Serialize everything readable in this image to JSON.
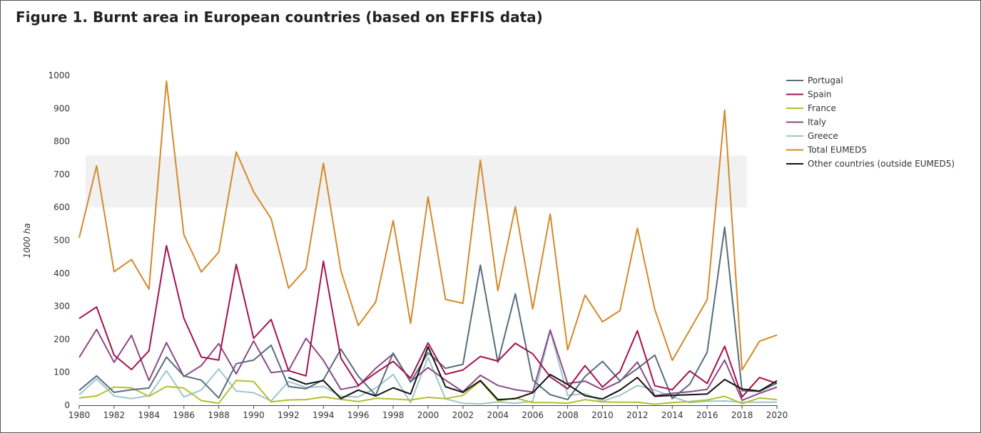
{
  "title": "Figure 1. Burnt area in European countries (based on EFFIS data)",
  "chart_data": {
    "type": "line",
    "title": "Figure 1. Burnt area in European countries (based on EFFIS data)",
    "xlabel": "",
    "ylabel": "1000 ha",
    "ylim": [
      0,
      1000
    ],
    "yticks": [
      "0",
      "100",
      "200",
      "300",
      "400",
      "500",
      "600",
      "700",
      "800",
      "900",
      "1000"
    ],
    "xticks": [
      "1980",
      "1982",
      "1984",
      "1986",
      "1988",
      "1990",
      "1992",
      "1994",
      "1996",
      "1998",
      "2000",
      "2002",
      "2004",
      "2006",
      "2008",
      "2010",
      "2012",
      "2014",
      "2016",
      "2018",
      "2020"
    ],
    "xlim": [
      1980,
      2020
    ],
    "band": {
      "from": 600,
      "to": 757
    },
    "x": [
      1980,
      1981,
      1982,
      1983,
      1984,
      1985,
      1986,
      1987,
      1988,
      1989,
      1990,
      1991,
      1992,
      1993,
      1994,
      1995,
      1996,
      1997,
      1998,
      1999,
      2000,
      2001,
      2002,
      2003,
      2004,
      2005,
      2006,
      2007,
      2008,
      2009,
      2010,
      2011,
      2012,
      2013,
      2014,
      2015,
      2016,
      2017,
      2018,
      2019,
      2020
    ],
    "legend_position": "top-right",
    "series": [
      {
        "name": "Portugal",
        "color": "#566d7c",
        "values": [
          45,
          89,
          39,
          47,
          52,
          146,
          89,
          76,
          22,
          126,
          137,
          182,
          57,
          50,
          77,
          170,
          88,
          30,
          158,
          70,
          159,
          112,
          124,
          425,
          130,
          338,
          76,
          32,
          17,
          87,
          133,
          74,
          111,
          152,
          20,
          64,
          161,
          540,
          44,
          42,
          67
        ]
      },
      {
        "name": "Spain",
        "color": "#a3134d",
        "values": [
          263,
          298,
          152,
          108,
          165,
          484,
          264,
          146,
          137,
          427,
          203,
          260,
          105,
          89,
          437,
          143,
          60,
          98,
          133,
          82,
          189,
          94,
          107,
          148,
          134,
          188,
          156,
          86,
          50,
          120,
          55,
          102,
          226,
          59,
          47,
          104,
          66,
          179,
          25,
          84,
          66
        ]
      },
      {
        "name": "France",
        "color": "#b2c02d",
        "values": [
          22,
          28,
          55,
          53,
          27,
          57,
          52,
          14,
          6,
          75,
          72,
          10,
          16,
          17,
          25,
          18,
          11,
          21,
          19,
          16,
          24,
          20,
          30,
          73,
          13,
          22,
          8,
          8,
          6,
          17,
          10,
          9,
          9,
          3,
          8,
          11,
          16,
          27,
          5,
          22,
          17
        ]
      },
      {
        "name": "Italy",
        "color": "#8a4a86",
        "values": [
          145,
          230,
          130,
          212,
          75,
          190,
          87,
          120,
          187,
          95,
          195,
          99,
          105,
          203,
          136,
          48,
          58,
          112,
          156,
          72,
          114,
          76,
          41,
          91,
          60,
          47,
          40,
          228,
          66,
          73,
          47,
          72,
          131,
          29,
          36,
          41,
          48,
          137,
          15,
          36,
          55
        ]
      },
      {
        "name": "Greece",
        "color": "#9ec6c9",
        "values": [
          32,
          80,
          28,
          20,
          29,
          105,
          25,
          46,
          110,
          43,
          38,
          13,
          72,
          54,
          57,
          27,
          25,
          52,
          93,
          8,
          145,
          19,
          6,
          4,
          10,
          6,
          12,
          226,
          30,
          35,
          12,
          30,
          60,
          46,
          26,
          8,
          12,
          13,
          9,
          9,
          9
        ]
      },
      {
        "name": "Total EUMED5",
        "color": "#d4892a",
        "values": [
          508,
          726,
          405,
          442,
          352,
          983,
          517,
          404,
          464,
          768,
          647,
          566,
          355,
          414,
          734,
          408,
          242,
          313,
          560,
          248,
          632,
          321,
          309,
          743,
          347,
          602,
          292,
          580,
          168,
          334,
          253,
          287,
          537,
          290,
          136,
          228,
          320,
          895,
          107,
          194,
          213
        ]
      },
      {
        "name": "Other countries (outside EUMED5)",
        "color": "#111111",
        "values": [
          null,
          null,
          null,
          null,
          null,
          null,
          null,
          null,
          null,
          null,
          null,
          null,
          84,
          64,
          75,
          20,
          46,
          28,
          53,
          34,
          177,
          56,
          39,
          75,
          17,
          20,
          38,
          93,
          63,
          29,
          19,
          46,
          84,
          27,
          30,
          32,
          34,
          78,
          49,
          43,
          74
        ]
      }
    ]
  }
}
